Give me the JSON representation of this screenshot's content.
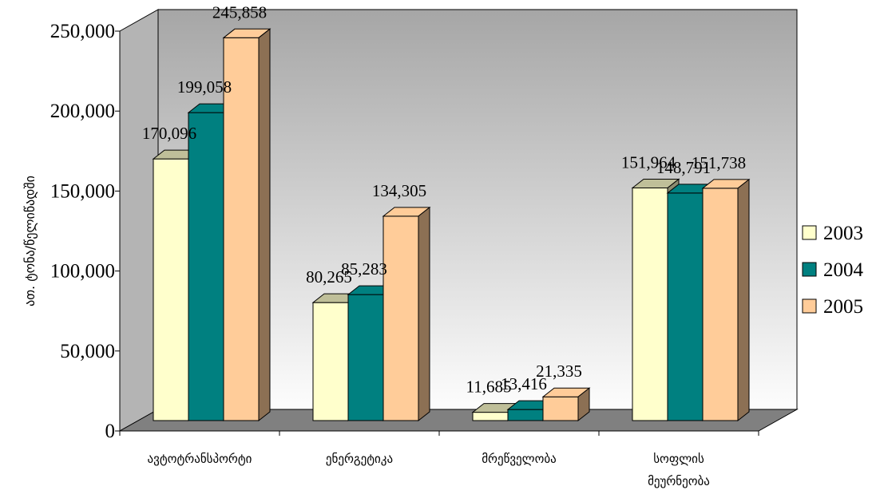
{
  "chart_data": {
    "type": "bar",
    "title": "",
    "xlabel": "",
    "ylabel": "ათ. ტონა/წელიწადში",
    "categories": [
      [
        "ავტოტრანსპორტი"
      ],
      [
        "ენერგეტიკა"
      ],
      [
        "მრეწველობა"
      ],
      [
        "სოფლის",
        "მეურნეობა"
      ]
    ],
    "series": [
      {
        "name": "2003",
        "color": "#FFFFCC",
        "values": [
          170096,
          80265,
          11685,
          151964
        ]
      },
      {
        "name": "2004",
        "color": "#008080",
        "values": [
          199058,
          85283,
          13416,
          148791
        ]
      },
      {
        "name": "2005",
        "color": "#FFCC99",
        "values": [
          245858,
          134305,
          21335,
          151738
        ]
      }
    ],
    "data_labels": [
      [
        "170,096",
        "80,265",
        "11,685",
        "151,964"
      ],
      [
        "199,058",
        "85,283",
        "13,416",
        "148,791"
      ],
      [
        "245,858",
        "134,305",
        "21,335",
        "151,738"
      ]
    ],
    "y_ticks": [
      0,
      50000,
      100000,
      150000,
      200000,
      250000
    ],
    "y_tick_labels": [
      "0",
      "50,000",
      "100,000",
      "150,000",
      "200,000",
      "250,000"
    ],
    "ylim": [
      0,
      250000
    ],
    "grid": false,
    "legend_position": "right",
    "style": "3d-clustered-column"
  }
}
